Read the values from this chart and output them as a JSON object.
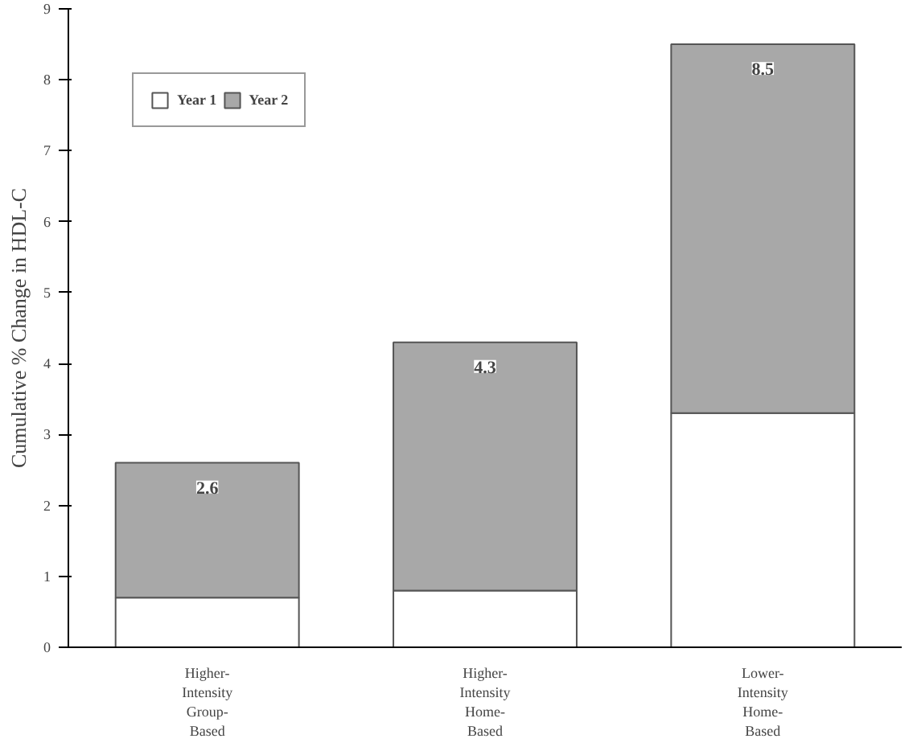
{
  "chart_data": {
    "type": "bar",
    "stacked": true,
    "ylabel": "Cumulative % Change in HDL-C",
    "categories": [
      "Higher-Intensity Group-Based",
      "Higher-Intensity Home-Based",
      "Lower-Intensity Home-Based"
    ],
    "series": [
      {
        "name": "Year 1",
        "color": "#ffffff",
        "values": [
          0.7,
          0.8,
          3.3
        ]
      },
      {
        "name": "Year 2",
        "color": "#a8a8a8",
        "values": [
          1.9,
          3.5,
          5.2
        ]
      }
    ],
    "totals": [
      "2.6",
      "4.3",
      "8.5"
    ],
    "ylim": [
      0,
      9
    ],
    "yticks": [
      0,
      1,
      2,
      3,
      4,
      5,
      6,
      7,
      8,
      9
    ],
    "grid": false,
    "legend": "top left"
  }
}
